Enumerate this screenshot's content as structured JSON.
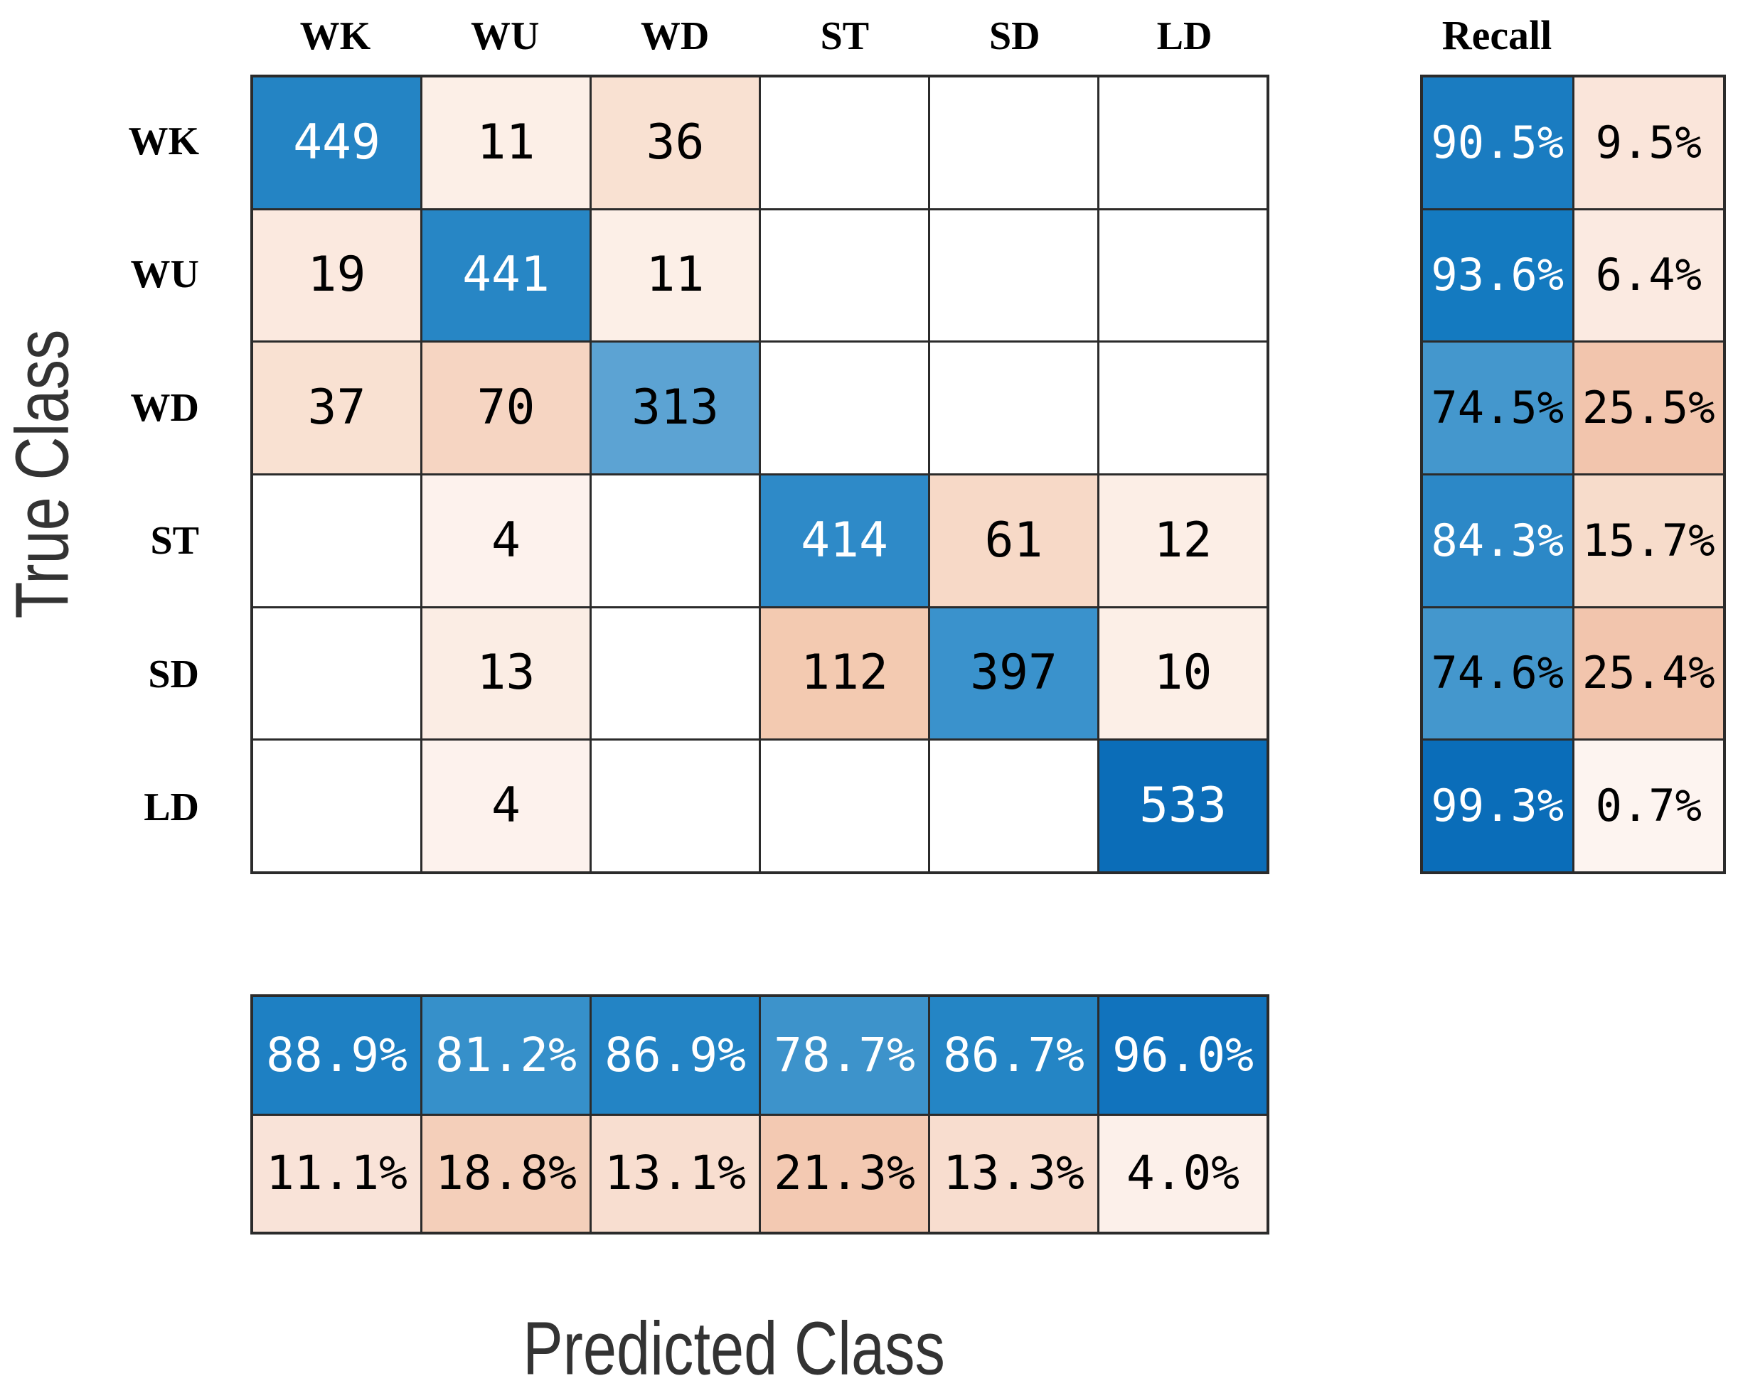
{
  "chart_data": {
    "type": "heatmap",
    "subtype": "confusion-matrix",
    "title": "",
    "xlabel": "Predicted Class",
    "ylabel": "True Class",
    "recall_title": "Recall",
    "classes": [
      "WK",
      "WU",
      "WD",
      "ST",
      "SD",
      "LD"
    ],
    "matrix": [
      [
        "449",
        "11",
        "36",
        "",
        "",
        ""
      ],
      [
        "19",
        "441",
        "11",
        "",
        "",
        ""
      ],
      [
        "37",
        "70",
        "313",
        "",
        "",
        ""
      ],
      [
        "",
        "4",
        "",
        "414",
        "61",
        "12"
      ],
      [
        "",
        "13",
        "",
        "112",
        "397",
        "10"
      ],
      [
        "",
        "4",
        "",
        "",
        "",
        "533"
      ]
    ],
    "recall": [
      "90.5%",
      "93.6%",
      "74.5%",
      "84.3%",
      "74.6%",
      "99.3%"
    ],
    "miss_rate": [
      "9.5%",
      "6.4%",
      "25.5%",
      "15.7%",
      "25.4%",
      "0.7%"
    ],
    "precision": [
      "88.9%",
      "81.2%",
      "86.9%",
      "78.7%",
      "86.7%",
      "96.0%"
    ],
    "false_discovery_rate": [
      "11.1%",
      "18.8%",
      "13.1%",
      "21.3%",
      "13.3%",
      "4.0%"
    ],
    "layout": {
      "grid_on": true,
      "recall_column_position": "right",
      "precision_row_position": "bottom"
    },
    "colors": {
      "grid_line": "#2b2b2b",
      "text_dark": "#000000",
      "text_light": "#ffffff",
      "axis_label": "#333333",
      "empty_cell": "#ffffff",
      "matrix_bg": [
        [
          "#2484c4",
          "#fcefe7",
          "#f9e1d2",
          "#ffffff",
          "#ffffff",
          "#ffffff"
        ],
        [
          "#fbe9df",
          "#2786c5",
          "#fcefe7",
          "#ffffff",
          "#ffffff",
          "#ffffff"
        ],
        [
          "#f9e1d2",
          "#f6d5c2",
          "#5ca3d3",
          "#ffffff",
          "#ffffff",
          "#ffffff"
        ],
        [
          "#ffffff",
          "#fdf2ed",
          "#ffffff",
          "#2e8ac8",
          "#f7d9c7",
          "#fceee6"
        ],
        [
          "#ffffff",
          "#fbede4",
          "#ffffff",
          "#f3cab1",
          "#3a92cc",
          "#fcefe7"
        ],
        [
          "#ffffff",
          "#fdf2ed",
          "#ffffff",
          "#ffffff",
          "#ffffff",
          "#0b6db8"
        ]
      ],
      "matrix_fg": [
        [
          "w",
          "b",
          "b",
          "b",
          "b",
          "b"
        ],
        [
          "b",
          "w",
          "b",
          "b",
          "b",
          "b"
        ],
        [
          "b",
          "b",
          "b",
          "b",
          "b",
          "b"
        ],
        [
          "b",
          "b",
          "b",
          "w",
          "b",
          "b"
        ],
        [
          "b",
          "b",
          "b",
          "b",
          "b",
          "b"
        ],
        [
          "b",
          "b",
          "b",
          "b",
          "b",
          "w"
        ]
      ],
      "recall_bg": [
        [
          "#1a7cc1",
          "#fae5da"
        ],
        [
          "#147ac0",
          "#fbeae1"
        ],
        [
          "#4497cd",
          "#f2c5ad"
        ],
        [
          "#2c88c7",
          "#f7dccb"
        ],
        [
          "#4497cd",
          "#f2c5ad"
        ],
        [
          "#0a6db9",
          "#fdf4f0"
        ]
      ],
      "recall_fg": [
        [
          "w",
          "b"
        ],
        [
          "w",
          "b"
        ],
        [
          "b",
          "b"
        ],
        [
          "w",
          "b"
        ],
        [
          "b",
          "b"
        ],
        [
          "w",
          "b"
        ]
      ],
      "precision_bg": [
        "#1e80c3",
        "#3690ca",
        "#2384c5",
        "#3d93cb",
        "#2485c5",
        "#1173bd"
      ],
      "precision_fg": [
        "w",
        "w",
        "w",
        "w",
        "w",
        "w"
      ],
      "fdr_bg": [
        "#f9e3d8",
        "#f4cfba",
        "#f8ded0",
        "#f3c9b2",
        "#f8ddcf",
        "#fcf0ea"
      ],
      "fdr_fg": [
        "b",
        "b",
        "b",
        "b",
        "b",
        "b"
      ]
    }
  }
}
